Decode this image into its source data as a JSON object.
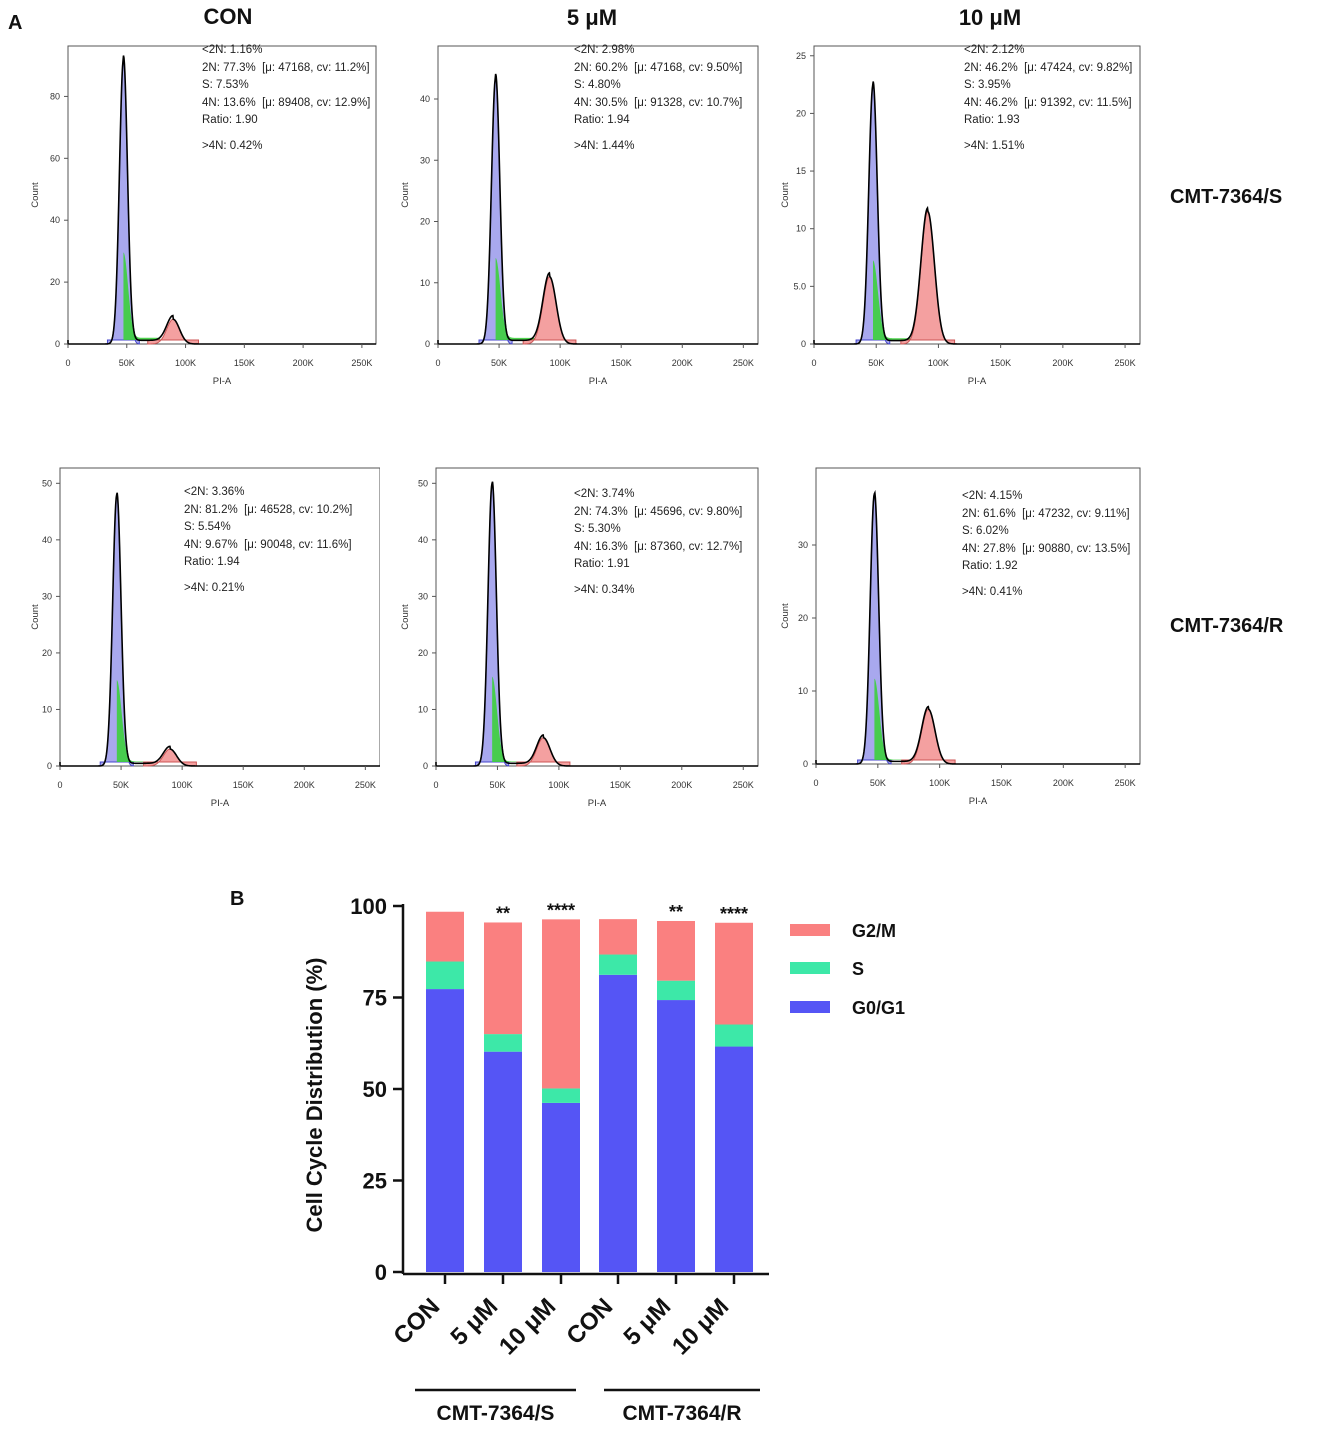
{
  "figure": {
    "panel_a_label": "A",
    "panel_b_label": "B",
    "column_titles": [
      "CON",
      "5 μM",
      "10 μM"
    ],
    "row_labels": [
      "CMT-7364/S",
      "CMT-7364/R"
    ]
  },
  "colors": {
    "g0g1": "#5555f5",
    "s": "#3de8a8",
    "g2m": "#fa8080",
    "hist_g1_fill": "#a8a8ee",
    "hist_s_fill": "#3ccf3c",
    "hist_g2_fill": "#f4a0a0",
    "hist_outline": "#000000"
  },
  "histograms": [
    {
      "id": "S-CON",
      "xlabel": "PI-A",
      "ylabel": "Count",
      "xticks": [
        "0",
        "50K",
        "100K",
        "150K",
        "200K",
        "250K"
      ],
      "yticks": [
        "0",
        "20",
        "40",
        "60",
        "80"
      ],
      "ymax": 95,
      "g1_peak": 92,
      "g1_mu": 47168,
      "g2_peak": 8,
      "g2_mu": 89408,
      "s_level": 2,
      "stats": {
        "lt2n": "<2N: 1.16%",
        "n2": "2N: 77.3%",
        "n2_fit": "[μ: 47168, cv: 11.2%]",
        "s": "S: 7.53%",
        "n4": "4N: 13.6%",
        "n4_fit": "[μ: 89408, cv: 12.9%]",
        "ratio": "Ratio: 1.90",
        "gt4n": ">4N: 0.42%"
      }
    },
    {
      "id": "S-5uM",
      "xlabel": "PI-A",
      "ylabel": "Count",
      "xticks": [
        "0",
        "50K",
        "100K",
        "150K",
        "200K",
        "250K"
      ],
      "yticks": [
        "0",
        "10",
        "20",
        "30",
        "40"
      ],
      "ymax": 48,
      "g1_peak": 43.5,
      "g1_mu": 47168,
      "g2_peak": 11,
      "g2_mu": 91328,
      "s_level": 1,
      "stats": {
        "lt2n": "<2N: 2.98%",
        "n2": "2N: 60.2%",
        "n2_fit": "[μ: 47168, cv: 9.50%]",
        "s": "S: 4.80%",
        "n4": "4N: 30.5%",
        "n4_fit": "[μ: 91328, cv: 10.7%]",
        "ratio": "Ratio: 1.94",
        "gt4n": ">4N: 1.44%"
      }
    },
    {
      "id": "S-10uM",
      "xlabel": "PI-A",
      "ylabel": "Count",
      "xticks": [
        "0",
        "50K",
        "100K",
        "150K",
        "200K",
        "250K"
      ],
      "yticks": [
        "0",
        "5.0",
        "10",
        "15",
        "20",
        "25"
      ],
      "ymax": 25.5,
      "g1_peak": 22.5,
      "g1_mu": 47424,
      "g2_peak": 11.5,
      "g2_mu": 91392,
      "s_level": 0.5,
      "stats": {
        "lt2n": "<2N: 2.12%",
        "n2": "2N: 46.2%",
        "n2_fit": "[μ: 47424, cv: 9.82%]",
        "s": "S: 3.95%",
        "n4": "4N: 46.2%",
        "n4_fit": "[μ: 91392, cv: 11.5%]",
        "ratio": "Ratio: 1.93",
        "gt4n": ">4N: 1.51%"
      }
    },
    {
      "id": "R-CON",
      "xlabel": "PI-A",
      "ylabel": "Count",
      "xticks": [
        "0",
        "50K",
        "100K",
        "150K",
        "200K",
        "250K"
      ],
      "yticks": [
        "0",
        "10",
        "20",
        "30",
        "40",
        "50"
      ],
      "ymax": 52,
      "g1_peak": 48,
      "g1_mu": 46528,
      "g2_peak": 3,
      "g2_mu": 90048,
      "s_level": 0.8,
      "stats": {
        "lt2n": "<2N: 3.36%",
        "n2": "2N: 81.2%",
        "n2_fit": "[μ: 46528, cv: 10.2%]",
        "s": "S: 5.54%",
        "n4": "4N: 9.67%",
        "n4_fit": "[μ: 90048, cv: 11.6%]",
        "ratio": "Ratio: 1.94",
        "gt4n": ">4N: 0.21%"
      }
    },
    {
      "id": "R-5uM",
      "xlabel": "PI-A",
      "ylabel": "Count",
      "xticks": [
        "0",
        "50K",
        "100K",
        "150K",
        "200K",
        "250K"
      ],
      "yticks": [
        "0",
        "10",
        "20",
        "30",
        "40",
        "50"
      ],
      "ymax": 52,
      "g1_peak": 50,
      "g1_mu": 45696,
      "g2_peak": 5,
      "g2_mu": 87360,
      "s_level": 0.8,
      "stats": {
        "lt2n": "<2N: 3.74%",
        "n2": "2N: 74.3%",
        "n2_fit": "[μ: 45696, cv: 9.80%]",
        "s": "S: 5.30%",
        "n4": "4N: 16.3%",
        "n4_fit": "[μ: 87360, cv: 12.7%]",
        "ratio": "Ratio: 1.91",
        "gt4n": ">4N: 0.34%"
      }
    },
    {
      "id": "R-10uM",
      "xlabel": "PI-A",
      "ylabel": "Count",
      "xticks": [
        "0",
        "50K",
        "100K",
        "150K",
        "200K",
        "250K"
      ],
      "yticks": [
        "0",
        "10",
        "20",
        "30"
      ],
      "ymax": 40,
      "g1_peak": 37,
      "g1_mu": 47232,
      "g2_peak": 7.5,
      "g2_mu": 90880,
      "s_level": 0.6,
      "stats": {
        "lt2n": "<2N: 4.15%",
        "n2": "2N: 61.6%",
        "n2_fit": "[μ: 47232, cv: 9.11%]",
        "s": "S: 6.02%",
        "n4": "4N: 27.8%",
        "n4_fit": "[μ: 90880, cv: 13.5%]",
        "ratio": "Ratio: 1.92",
        "gt4n": ">4N: 0.41%"
      }
    }
  ],
  "chart_data": {
    "type": "bar",
    "stacked": true,
    "ylabel": "Cell Cycle Distribution (%)",
    "ylim": [
      0,
      100
    ],
    "yticks": [
      "0",
      "25",
      "50",
      "75",
      "100"
    ],
    "categories": [
      "CON",
      "5 μM",
      "10 μM",
      "CON",
      "5 μM",
      "10 μM"
    ],
    "groups": [
      {
        "label": "CMT-7364/S"
      },
      {
        "label": "CMT-7364/R"
      }
    ],
    "significance": [
      "",
      "**",
      "****",
      "",
      "**",
      "****"
    ],
    "series": [
      {
        "name": "G0/G1",
        "values": [
          77.3,
          60.2,
          46.2,
          81.2,
          74.3,
          61.6
        ]
      },
      {
        "name": "S",
        "values": [
          7.53,
          4.8,
          3.95,
          5.54,
          5.3,
          6.02
        ]
      },
      {
        "name": "G2/M",
        "values": [
          13.6,
          30.5,
          46.2,
          9.67,
          16.3,
          27.8
        ]
      }
    ],
    "legend": [
      "G2/M",
      "S",
      "G0/G1"
    ]
  }
}
